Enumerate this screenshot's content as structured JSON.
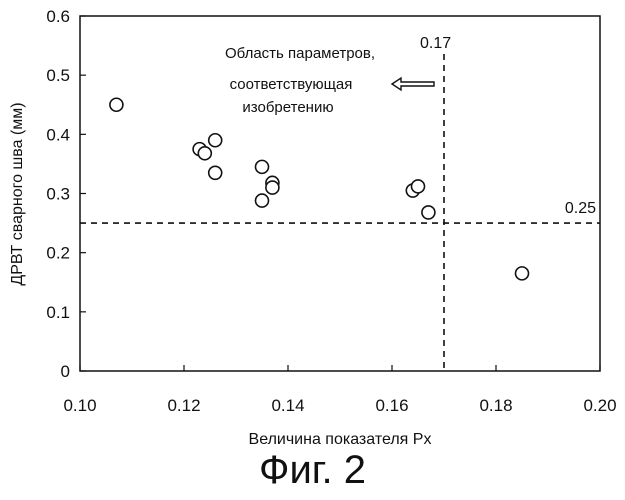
{
  "chart_data": {
    "type": "scatter",
    "xlabel": "Величина показателя Px",
    "ylabel": "ДРВТ сварного шва (мм)",
    "xlim": [
      0.1,
      0.2
    ],
    "ylim": [
      0,
      0.6
    ],
    "x_ticks": [
      "0.10",
      "0.12",
      "0.14",
      "0.16",
      "0.18",
      "0.20"
    ],
    "y_ticks": [
      "0",
      "0.1",
      "0.2",
      "0.3",
      "0.4",
      "0.5",
      "0.6"
    ],
    "x_tick_values": [
      0.1,
      0.12,
      0.14,
      0.16,
      0.18,
      0.2
    ],
    "y_tick_values": [
      0,
      0.1,
      0.2,
      0.3,
      0.4,
      0.5,
      0.6
    ],
    "grid": false,
    "marker": "open-circle",
    "points": [
      {
        "x": 0.107,
        "y": 0.45
      },
      {
        "x": 0.123,
        "y": 0.375
      },
      {
        "x": 0.124,
        "y": 0.368
      },
      {
        "x": 0.126,
        "y": 0.39
      },
      {
        "x": 0.126,
        "y": 0.335
      },
      {
        "x": 0.135,
        "y": 0.345
      },
      {
        "x": 0.135,
        "y": 0.288
      },
      {
        "x": 0.137,
        "y": 0.318
      },
      {
        "x": 0.137,
        "y": 0.31
      },
      {
        "x": 0.164,
        "y": 0.305
      },
      {
        "x": 0.165,
        "y": 0.312
      },
      {
        "x": 0.167,
        "y": 0.268
      },
      {
        "x": 0.185,
        "y": 0.165
      }
    ],
    "reference_lines": [
      {
        "orientation": "vertical",
        "value": 0.17,
        "label": "0.17",
        "style": "dashed"
      },
      {
        "orientation": "horizontal",
        "value": 0.25,
        "label": "0.25",
        "style": "dashed"
      }
    ],
    "annotation": {
      "lines": [
        "Область параметров,",
        "соответствующая",
        "изобретению"
      ],
      "arrow_direction": "left"
    }
  },
  "caption": "Фиг. 2"
}
